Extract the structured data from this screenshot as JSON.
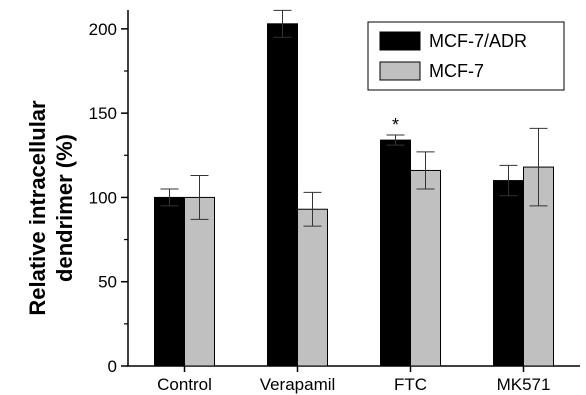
{
  "chart_data": {
    "type": "bar",
    "categories": [
      "Control",
      "Verapamil",
      "FTC",
      "MK571"
    ],
    "series": [
      {
        "name": "MCF-7/ADR",
        "color": "#000000",
        "values": [
          100,
          203,
          134,
          110
        ],
        "errors": [
          5,
          8,
          3,
          9
        ],
        "significance": [
          "",
          "**",
          "*",
          ""
        ]
      },
      {
        "name": "MCF-7",
        "color": "#c0c0c0",
        "values": [
          100,
          93,
          116,
          118
        ],
        "errors": [
          13,
          10,
          11,
          23
        ],
        "significance": [
          "",
          "",
          "",
          ""
        ]
      }
    ],
    "ylabel_line1": "Relative intracellular",
    "ylabel_line2": "dendrimer (%)",
    "xlabel": "",
    "ylim": [
      0,
      210
    ],
    "yticks": [
      "0",
      "50",
      "100",
      "150",
      "200"
    ],
    "legend_position": "top-right",
    "grid": false
  }
}
